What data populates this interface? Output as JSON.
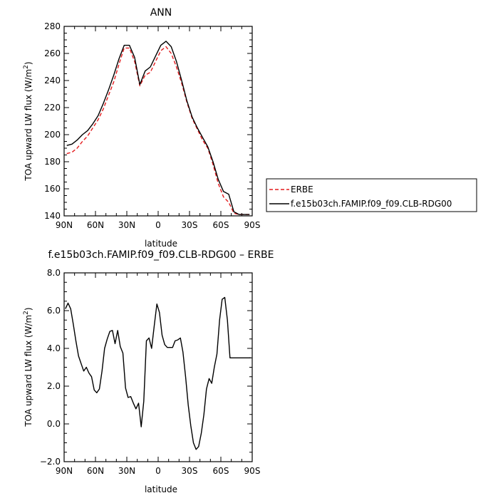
{
  "colors": {
    "erbe": "#e41a1c",
    "model": "#000000"
  },
  "chart_data": [
    {
      "type": "line",
      "title": "ANN",
      "xlabel": "latitude",
      "ylabel": "TOA upward LW flux (W/m",
      "ylabel_sup": "2",
      "ylabel_end": ")",
      "xlim": [
        90,
        -90
      ],
      "ylim": [
        140,
        280
      ],
      "xticks": [
        {
          "v": 90,
          "label": "90N"
        },
        {
          "v": 60,
          "label": "60N"
        },
        {
          "v": 30,
          "label": "30N"
        },
        {
          "v": 0,
          "label": "0"
        },
        {
          "v": -30,
          "label": "30S"
        },
        {
          "v": -60,
          "label": "60S"
        },
        {
          "v": -90,
          "label": "90S"
        }
      ],
      "yticks": [
        {
          "v": 140,
          "label": "140"
        },
        {
          "v": 160,
          "label": "160"
        },
        {
          "v": 180,
          "label": "180"
        },
        {
          "v": 200,
          "label": "200"
        },
        {
          "v": 220,
          "label": "220"
        },
        {
          "v": 240,
          "label": "240"
        },
        {
          "v": 260,
          "label": "260"
        },
        {
          "v": 280,
          "label": "280"
        }
      ],
      "legend": "outside-right-bottom",
      "series": [
        {
          "name": "ERBE",
          "style": "dashed",
          "color": "#e41a1c",
          "x": [
            87.5,
            82.5,
            77.5,
            72.5,
            67.5,
            62.5,
            57.5,
            52.5,
            47.5,
            42.5,
            37.5,
            32.5,
            27.5,
            22.5,
            17.5,
            12.5,
            7.5,
            2.5,
            -2.5,
            -7.5,
            -12.5,
            -17.5,
            -22.5,
            -27.5,
            -32.5,
            -37.5,
            -42.5,
            -47.5,
            -52.5,
            -57.5,
            -62.5,
            -67.5,
            -72.5,
            -77.5,
            -82.5,
            -87.5
          ],
          "y": [
            186,
            187,
            190,
            195,
            199,
            205,
            211,
            219,
            229,
            239,
            252,
            264,
            264,
            254,
            236,
            244,
            246,
            254,
            262,
            265,
            260,
            250,
            238,
            224,
            212,
            204,
            196,
            190,
            178,
            164,
            154,
            150,
            142,
            141,
            141,
            141
          ]
        },
        {
          "name": "f.e15b03ch.FAMIP.f09_f09.CLB-RDG00",
          "style": "solid",
          "color": "#000000",
          "x": [
            87.5,
            82.5,
            77.5,
            72.5,
            67.5,
            62.5,
            57.5,
            52.5,
            47.5,
            42.5,
            37.5,
            32.5,
            27.5,
            22.5,
            17.5,
            12.5,
            7.5,
            2.5,
            -2.5,
            -7.5,
            -12.5,
            -17.5,
            -22.5,
            -27.5,
            -32.5,
            -37.5,
            -42.5,
            -47.5,
            -52.5,
            -57.5,
            -62.5,
            -67.5,
            -72.5,
            -77.5,
            -82.5,
            -87.5
          ],
          "y": [
            192,
            193,
            196,
            200,
            203,
            208,
            214,
            223,
            233,
            244,
            256,
            266,
            266,
            257,
            237,
            247,
            250,
            258,
            266,
            269,
            265,
            254,
            240,
            225,
            213,
            205,
            198,
            191,
            180,
            167,
            158,
            156,
            143,
            141,
            141,
            141
          ]
        }
      ]
    },
    {
      "type": "line",
      "title": "f.e15b03ch.FAMIP.f09_f09.CLB-RDG00 – ERBE",
      "xlabel": "latitude",
      "ylabel": "TOA upward LW flux (W/m",
      "ylabel_sup": "2",
      "ylabel_end": ")",
      "xlim": [
        90,
        -90
      ],
      "ylim": [
        -2.0,
        8.0
      ],
      "xticks": [
        {
          "v": 90,
          "label": "90N"
        },
        {
          "v": 60,
          "label": "60N"
        },
        {
          "v": 30,
          "label": "30N"
        },
        {
          "v": 0,
          "label": "0"
        },
        {
          "v": -30,
          "label": "30S"
        },
        {
          "v": -60,
          "label": "60S"
        },
        {
          "v": -90,
          "label": "90S"
        }
      ],
      "yticks": [
        {
          "v": -2,
          "label": "−2.0"
        },
        {
          "v": 0,
          "label": "0.0"
        },
        {
          "v": 2,
          "label": "2.0"
        },
        {
          "v": 4,
          "label": "4.0"
        },
        {
          "v": 6,
          "label": "6.0"
        },
        {
          "v": 8,
          "label": "8.0"
        }
      ],
      "series": [
        {
          "style": "solid",
          "color": "#000000",
          "x": [
            88.75,
            86.25,
            83.75,
            81.25,
            78.75,
            76.25,
            73.75,
            71.25,
            68.75,
            66.25,
            63.75,
            61.25,
            58.75,
            56.25,
            53.75,
            51.25,
            48.75,
            46.25,
            43.75,
            41.25,
            38.75,
            36.25,
            33.75,
            31.25,
            28.75,
            26.25,
            23.75,
            21.25,
            18.75,
            16.25,
            13.75,
            11.25,
            8.75,
            6.25,
            3.75,
            1.25,
            -1.25,
            -3.75,
            -6.25,
            -8.75,
            -11.25,
            -13.75,
            -16.25,
            -18.75,
            -21.25,
            -23.75,
            -26.25,
            -28.75,
            -31.25,
            -33.75,
            -36.25,
            -38.75,
            -41.25,
            -43.75,
            -46.25,
            -48.75,
            -51.25,
            -53.75,
            -56.25,
            -58.75,
            -61.25,
            -63.75,
            -66.25,
            -68.75,
            -71.25,
            -73.75,
            -76.25,
            -78.75,
            -81.25,
            -83.75,
            -86.25,
            -88.75
          ],
          "y": [
            6.1,
            6.4,
            6.1,
            5.3,
            4.4,
            3.6,
            3.2,
            2.8,
            3.0,
            2.7,
            2.5,
            1.8,
            1.65,
            1.85,
            2.8,
            4.0,
            4.5,
            4.9,
            4.95,
            4.25,
            4.95,
            4.1,
            3.75,
            1.9,
            1.4,
            1.45,
            1.1,
            0.8,
            1.1,
            -0.15,
            1.2,
            4.4,
            4.55,
            4.0,
            5.2,
            6.35,
            5.9,
            4.7,
            4.2,
            4.05,
            4.05,
            4.05,
            4.4,
            4.45,
            4.55,
            3.8,
            2.5,
            1.0,
            -0.1,
            -1.0,
            -1.35,
            -1.2,
            -0.5,
            0.5,
            1.85,
            2.4,
            2.15,
            3.0,
            3.7,
            5.5,
            6.6,
            6.7,
            5.5,
            3.5,
            3.5,
            3.5,
            3.5,
            3.5,
            3.5,
            3.5,
            3.5,
            3.5
          ]
        }
      ]
    }
  ]
}
